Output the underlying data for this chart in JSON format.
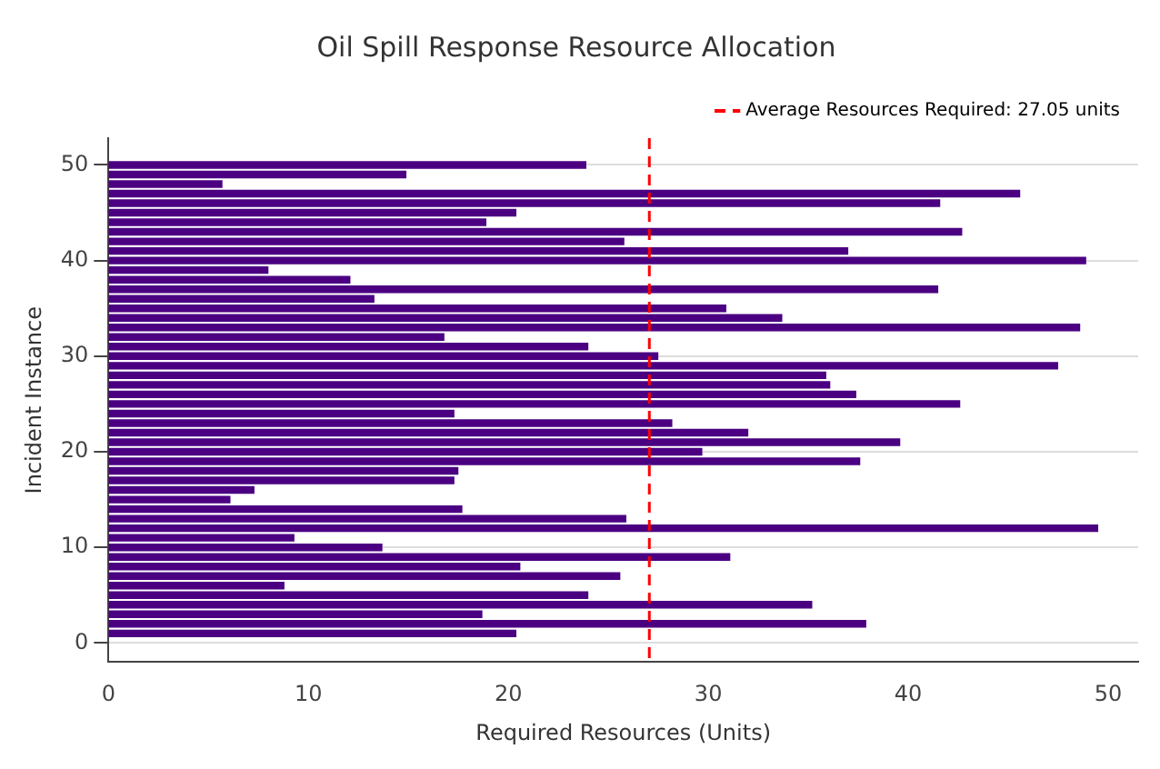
{
  "chart_data": {
    "type": "bar",
    "orientation": "horizontal",
    "title": "Oil Spill Response Resource Allocation",
    "xlabel": "Required Resources (Units)",
    "ylabel": "Incident Instance",
    "x": [
      1,
      2,
      3,
      4,
      5,
      6,
      7,
      8,
      9,
      10,
      11,
      12,
      13,
      14,
      15,
      16,
      17,
      18,
      19,
      20,
      21,
      22,
      23,
      24,
      25,
      26,
      27,
      28,
      29,
      30,
      31,
      32,
      33,
      34,
      35,
      36,
      37,
      38,
      39,
      40,
      41,
      42,
      43,
      44,
      45,
      46,
      47,
      48,
      49,
      50
    ],
    "series": [
      {
        "color": "#4b0082",
        "values": [
          20.4,
          37.9,
          18.7,
          35.2,
          24.0,
          8.8,
          25.6,
          20.6,
          31.1,
          13.7,
          9.3,
          49.5,
          25.9,
          17.7,
          6.1,
          7.3,
          17.3,
          17.5,
          37.6,
          29.7,
          39.6,
          32.0,
          28.2,
          17.3,
          42.6,
          37.4,
          36.1,
          35.9,
          47.5,
          27.5,
          24.0,
          16.8,
          48.6,
          33.7,
          30.9,
          13.3,
          41.5,
          12.1,
          8.0,
          48.9,
          37.0,
          25.8,
          42.7,
          18.9,
          20.4,
          41.6,
          45.6,
          5.7,
          14.9,
          23.9
        ]
      }
    ],
    "xlim": [
      0,
      51.5
    ],
    "xticks": [
      0,
      10,
      20,
      30,
      40,
      50
    ],
    "ylim": [
      -2,
      52.8
    ],
    "yticks": [
      0,
      10,
      20,
      30,
      40,
      50
    ],
    "ref_lines": [
      {
        "axis": "x",
        "value": 27.05,
        "label": "Average Resources Required: 27.05 units",
        "color": "#ff0000",
        "line_style": "dashed"
      }
    ],
    "grid": "y",
    "legend": "top right"
  }
}
